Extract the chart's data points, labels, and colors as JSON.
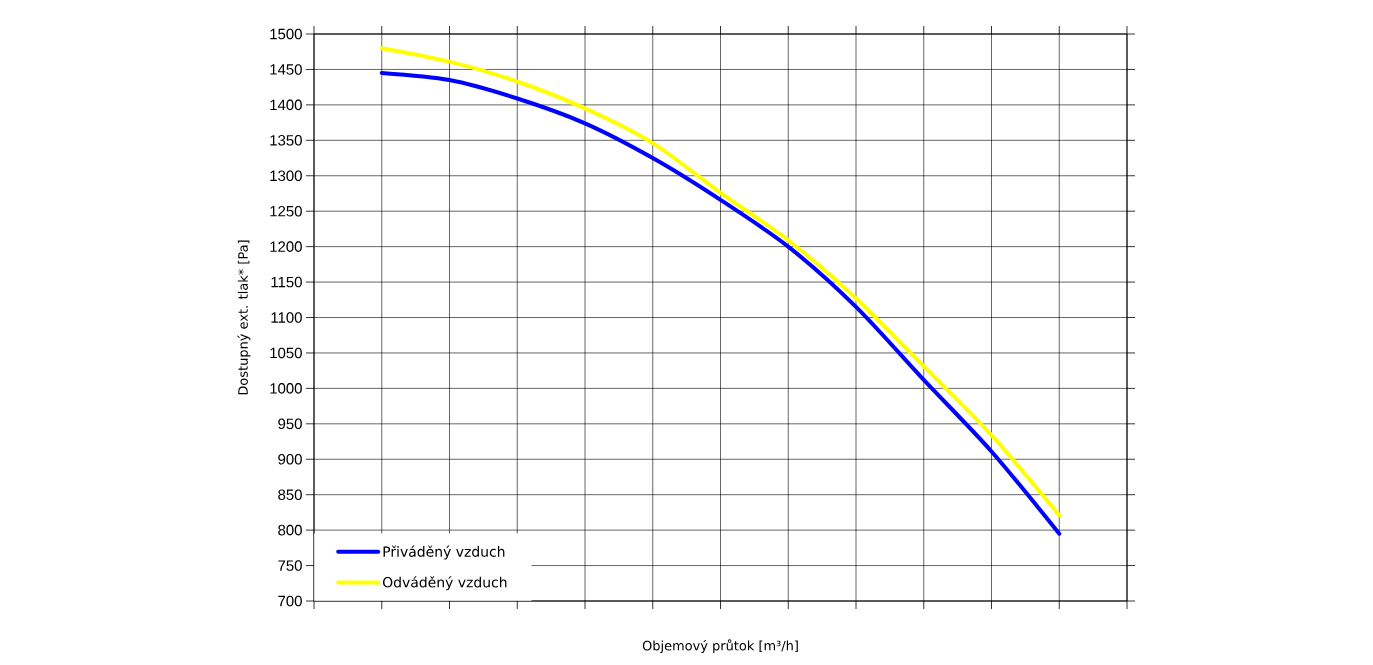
{
  "chart_data": {
    "type": "line",
    "xlabel": "Objemový průtok [m³/h]",
    "ylabel": "Dostupný ext. tlak* [Pa]",
    "categories": [
      null,
      null,
      null,
      null,
      null,
      null,
      null,
      null,
      null,
      null,
      null,
      null,
      null
    ],
    "series": [
      {
        "name": "Přiváděný vzduch",
        "color": "#0000ff",
        "values": [
          null,
          1445,
          1435,
          1409,
          1374,
          1325,
          1266,
          1200,
          1115,
          1012,
          911,
          795,
          null
        ]
      },
      {
        "name": "Odváděný vzduch",
        "color": "#ffff00",
        "values": [
          null,
          1480,
          1461,
          1433,
          1395,
          1346,
          1276,
          1209,
          1127,
          1031,
          934,
          821,
          null
        ]
      }
    ],
    "ylim": [
      700,
      1500
    ],
    "yticks": [
      700,
      750,
      800,
      850,
      900,
      950,
      1000,
      1050,
      1100,
      1150,
      1200,
      1250,
      1300,
      1350,
      1400,
      1450,
      1500
    ],
    "grid": true,
    "legend": "bottom left",
    "tick_labels": "y",
    "marker": "none",
    "line_style": "solid"
  }
}
